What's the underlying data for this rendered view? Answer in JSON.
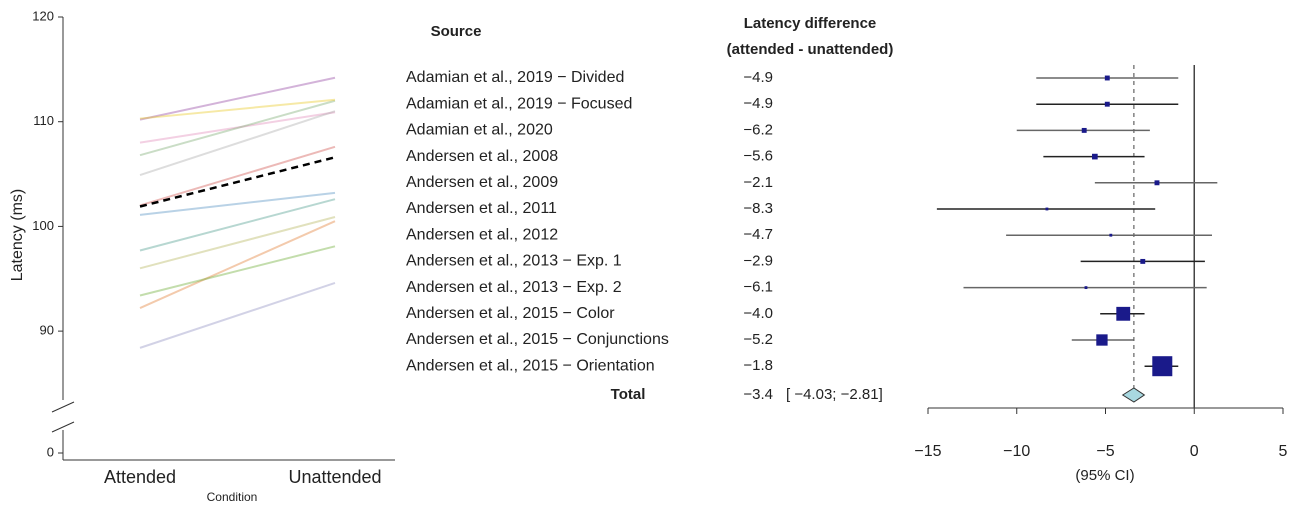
{
  "chart_data": [
    {
      "type": "slope",
      "ylabel": "Latency (ms)",
      "xlabel": "Condition",
      "categories": [
        "Attended",
        "Unattended"
      ],
      "ylim": [
        0,
        120
      ],
      "axis_break": [
        0,
        86
      ],
      "yticks": [
        0,
        90,
        100,
        110,
        120
      ],
      "line_opacity": 0.4,
      "series": [
        {
          "color": "#4a9c8c",
          "values": [
            97.7,
            102.6
          ]
        },
        {
          "color": "#b5b55a",
          "values": [
            96.0,
            100.9
          ]
        },
        {
          "color": "#8f8fc0",
          "values": [
            88.4,
            94.6
          ]
        },
        {
          "color": "#d0504a",
          "values": [
            102.0,
            107.6
          ]
        },
        {
          "color": "#4f8fc0",
          "values": [
            101.1,
            103.2
          ]
        },
        {
          "color": "#e07b30",
          "values": [
            92.2,
            100.5
          ]
        },
        {
          "color": "#6aaa30",
          "values": [
            93.4,
            98.1
          ]
        },
        {
          "color": "#e08ab8",
          "values": [
            108.0,
            110.9
          ]
        },
        {
          "color": "#aaaaaa",
          "values": [
            104.9,
            111.0
          ]
        },
        {
          "color": "#9040a0",
          "values": [
            110.2,
            114.2
          ]
        },
        {
          "color": "#7aaa70",
          "values": [
            106.8,
            112.0
          ]
        },
        {
          "color": "#e8c820",
          "values": [
            110.3,
            112.1
          ]
        },
        {
          "color": "#000000",
          "dashed": true,
          "values": [
            101.9,
            106.6
          ]
        }
      ]
    },
    {
      "type": "forest",
      "header_source": "Source",
      "header_diff": "Latency difference",
      "header_sub": "(attended - unattended)",
      "xlabel": "(95% CI)",
      "categories": [
        "Adamian et al., 2019 − Divided",
        "Adamian et al., 2019 − Focused",
        "Adamian et al., 2020",
        "Andersen et al., 2008",
        "Andersen et al., 2009",
        "Andersen et al., 2011",
        "Andersen et al., 2012",
        "Andersen et al., 2013 − Exp. 1",
        "Andersen et al., 2013 − Exp. 2",
        "Andersen et al., 2015 − Color",
        "Andersen et al., 2015 − Conjunctions",
        "Andersen et al., 2015 − Orientation"
      ],
      "colors": [
        "#4a9c8c",
        "#b5b55a",
        "#8f8fc0",
        "#d0504a",
        "#4f8fc0",
        "#e07b30",
        "#6aaa30",
        "#d07aaa",
        "#999999",
        "#9040a0",
        "#7aaa70",
        "#d6b020"
      ],
      "values": [
        -4.9,
        -4.9,
        -6.2,
        -5.6,
        -2.1,
        -8.3,
        -4.7,
        -2.9,
        -6.1,
        -4.0,
        -5.2,
        -1.8
      ],
      "value_labels": [
        "−4.9",
        "−4.9",
        "−6.2",
        "−5.6",
        "−2.1",
        "−8.3",
        "−4.7",
        "−2.9",
        "−6.1",
        "−4.0",
        "−5.2",
        "−1.8"
      ],
      "lower": [
        -8.9,
        -8.9,
        -10.0,
        -8.5,
        -5.6,
        -14.5,
        -10.6,
        -6.4,
        -13.0,
        -5.3,
        -6.9,
        -2.8
      ],
      "upper": [
        -0.9,
        -0.9,
        -2.5,
        -2.8,
        1.3,
        -2.2,
        1.0,
        0.6,
        0.7,
        -2.8,
        -3.4,
        -0.9
      ],
      "weights": [
        1.5,
        1.5,
        1.5,
        2,
        1.5,
        0.5,
        0.5,
        1.5,
        0.5,
        12,
        8,
        25
      ],
      "total": {
        "label": "Total",
        "value": -3.4,
        "value_label": "−3.4",
        "lower": -4.03,
        "upper": -2.81,
        "ci_label": "[ −4.03; −2.81]"
      },
      "xlim": [
        -15,
        5
      ],
      "xticks": [
        {
          "value": -15,
          "label": "−15"
        },
        {
          "value": -10,
          "label": "−10"
        },
        {
          "value": -5,
          "label": "−5"
        },
        0,
        5
      ],
      "reference_line": 0,
      "square_color": "#1a1a8a",
      "diamond_color": "#a8d8e0"
    }
  ]
}
